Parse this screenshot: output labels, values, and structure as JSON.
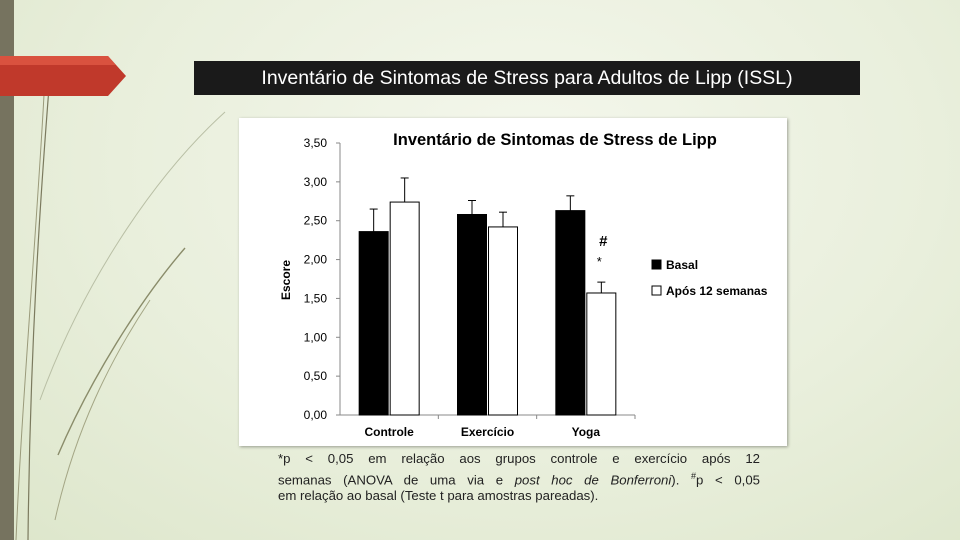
{
  "slide": {
    "title": "Inventário de Sintomas de Stress para Adultos de Lipp (ISSL)",
    "accent_color": "#c0392b",
    "sidebar_color": "#76735f"
  },
  "footnote": {
    "l1": "*p < 0,05 em relação aos grupos controle e exercício após 12",
    "l2a": "semanas (ANOVA de uma via e ",
    "l2b": "post hoc de Bonferroni",
    "l2c": "). ",
    "l2sup": "#",
    "l2d": "p < 0,05",
    "l3": "em relação ao basal (Teste t para amostras pareadas)."
  },
  "chart_data": {
    "type": "bar",
    "title": "Inventário de Sintomas de Stress de Lipp",
    "xlabel": "",
    "ylabel": "Escore",
    "ylim": [
      0,
      3.5
    ],
    "yticks": [
      "0,00",
      "0,50",
      "1,00",
      "1,50",
      "2,00",
      "2,50",
      "3,00",
      "3,50"
    ],
    "grid": false,
    "legend_position": "right",
    "categories": [
      "Controle",
      "Exercício",
      "Yoga"
    ],
    "series": [
      {
        "name": "Basal",
        "color": "#000000",
        "values": [
          2.36,
          2.58,
          2.63
        ],
        "errors": [
          0.29,
          0.18,
          0.19
        ]
      },
      {
        "name": "Após 12 semanas",
        "color": "#ffffff",
        "values": [
          2.74,
          2.42,
          1.57
        ],
        "errors": [
          0.31,
          0.19,
          0.14
        ]
      }
    ],
    "annotations": [
      {
        "category": "Yoga",
        "text": "#"
      },
      {
        "category": "Yoga",
        "text": "*"
      }
    ]
  }
}
